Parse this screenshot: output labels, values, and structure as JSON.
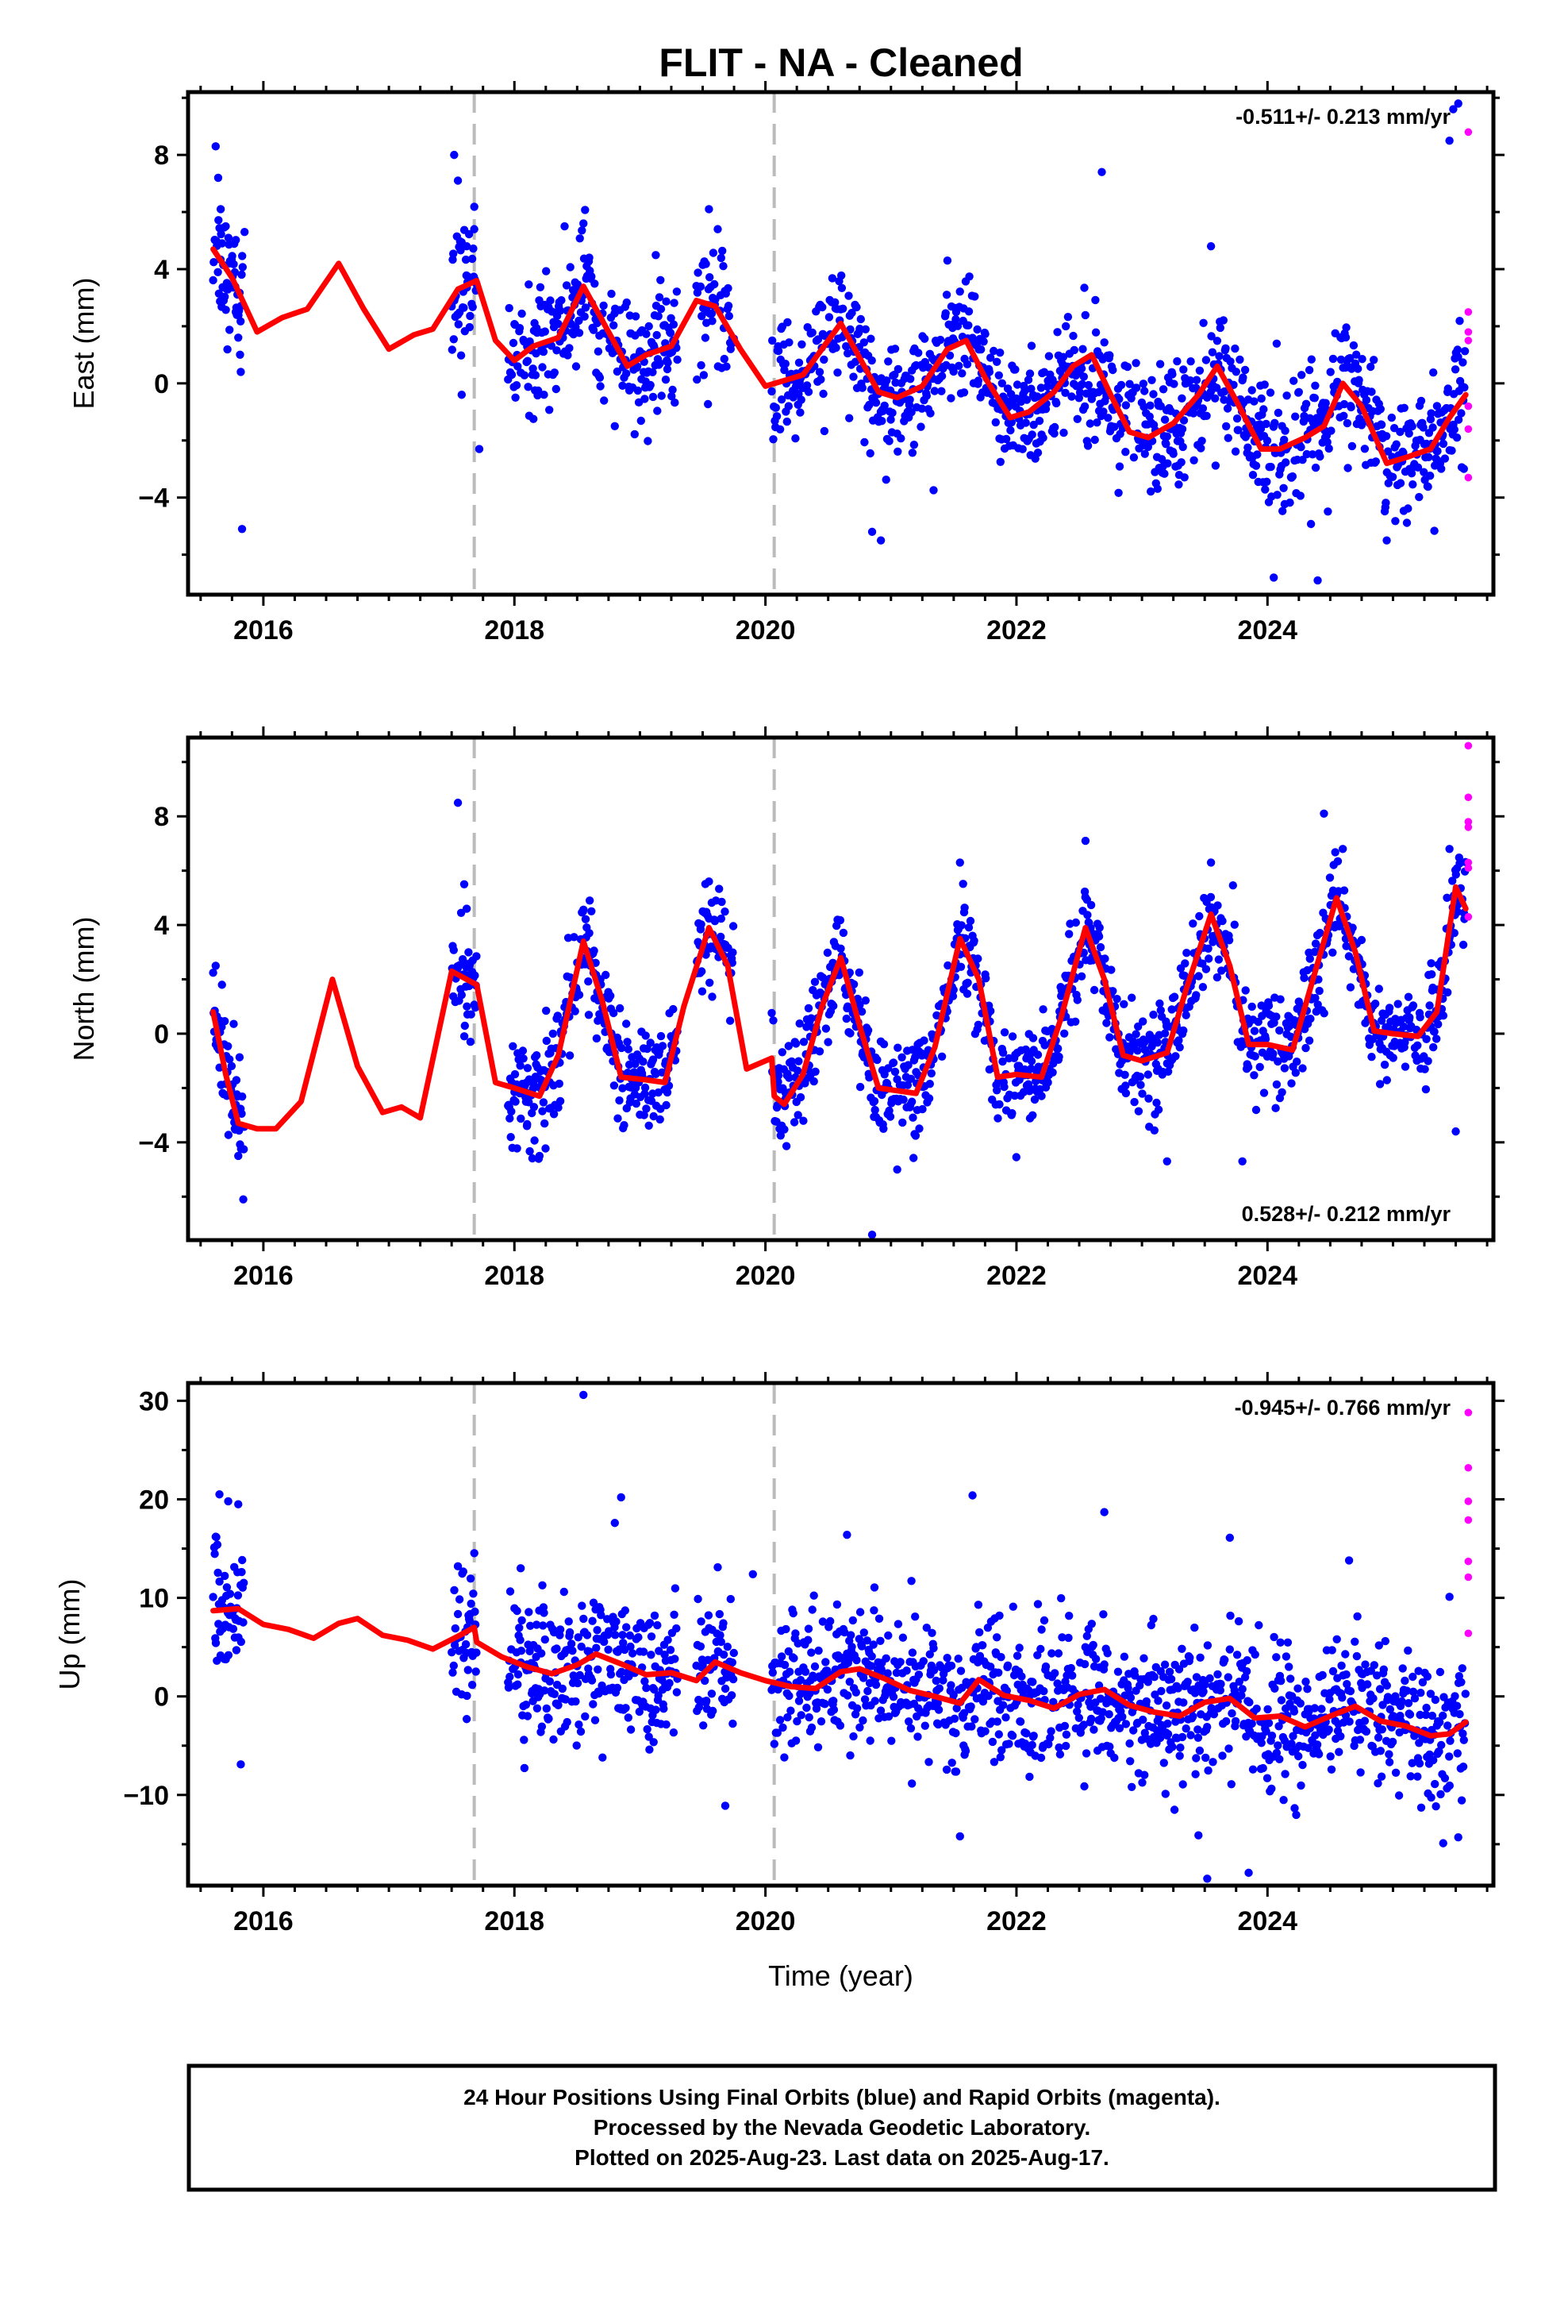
{
  "title": "FLIT  - NA - Cleaned",
  "footer": {
    "line1": "24 Hour Positions Using Final Orbits (blue) and Rapid Orbits (magenta).",
    "line2": "Processed by the Nevada Geodetic Laboratory.",
    "line3": "Plotted on 2025-Aug-23. Last data on 2025-Aug-17."
  },
  "colors": {
    "final_orbits": "#0000ff",
    "rapid_orbits": "#ff00ff",
    "model_fit": "#ff0000",
    "step_lines": "#bbbbbb"
  },
  "chart_data": [
    {
      "type": "scatter",
      "ylabel": "East (mm)",
      "xlabel": "",
      "xlim": [
        2015.4,
        2025.8
      ],
      "ylim": [
        -7.4,
        10.2
      ],
      "x_ticks": [
        2016,
        2018,
        2020,
        2022,
        2024
      ],
      "x_tick_labels": [
        "2016",
        "2018",
        "2020",
        "2022",
        "2024"
      ],
      "y_ticks": [
        -4,
        0,
        4,
        8
      ],
      "y_tick_labels": [
        "−4",
        "0",
        "4",
        "8"
      ],
      "rate_label": "-0.511+/- 0.213 mm/yr",
      "rate_position": "top-right",
      "grid": false,
      "step_epochs": [
        2017.68,
        2020.07
      ],
      "segments": [
        [
          2015.6,
          2015.85
        ],
        [
          2017.5,
          2017.7
        ],
        [
          2017.95,
          2019.3
        ],
        [
          2019.45,
          2019.75
        ],
        [
          2020.05,
          2025.58
        ]
      ],
      "model_fit": {
        "name": "",
        "x": [
          2015.6,
          2015.75,
          2015.95,
          2016.15,
          2016.35,
          2016.6,
          2016.8,
          2017.0,
          2017.2,
          2017.35,
          2017.55,
          2017.7,
          2017.85,
          2018.0,
          2018.15,
          2018.35,
          2018.55,
          2018.7,
          2018.9,
          2019.05,
          2019.25,
          2019.45,
          2019.6,
          2019.8,
          2020.0,
          2020.15,
          2020.3,
          2020.45,
          2020.6,
          2020.75,
          2020.9,
          2021.05,
          2021.25,
          2021.45,
          2021.6,
          2021.75,
          2021.95,
          2022.1,
          2022.3,
          2022.45,
          2022.6,
          2022.75,
          2022.9,
          2023.05,
          2023.25,
          2023.45,
          2023.6,
          2023.75,
          2023.95,
          2024.1,
          2024.3,
          2024.45,
          2024.6,
          2024.75,
          2024.95,
          2025.1,
          2025.3,
          2025.45,
          2025.58
        ],
        "y": [
          4.7,
          3.7,
          1.8,
          2.3,
          2.6,
          4.2,
          2.6,
          1.2,
          1.7,
          1.9,
          3.3,
          3.6,
          1.5,
          0.8,
          1.3,
          1.6,
          3.4,
          2.2,
          0.6,
          1.0,
          1.3,
          2.9,
          2.7,
          1.2,
          -0.1,
          0.1,
          0.3,
          1.2,
          2.1,
          0.9,
          -0.3,
          -0.5,
          -0.1,
          1.2,
          1.5,
          0.2,
          -1.2,
          -1.0,
          -0.3,
          0.6,
          1.0,
          -0.4,
          -1.7,
          -1.9,
          -1.4,
          -0.4,
          0.6,
          -0.6,
          -2.3,
          -2.3,
          -1.9,
          -1.5,
          0.0,
          -0.8,
          -2.8,
          -2.6,
          -2.3,
          -1.2,
          -0.4
        ]
      },
      "final_points": [
        {
          "x": 2015.62,
          "y": 8.3
        },
        {
          "x": 2015.64,
          "y": 7.2
        },
        {
          "x": 2015.66,
          "y": 6.1
        },
        {
          "x": 2015.7,
          "y": 5.5
        },
        {
          "x": 2015.73,
          "y": 4.2
        },
        {
          "x": 2015.75,
          "y": 3.4
        },
        {
          "x": 2015.78,
          "y": 2.5
        },
        {
          "x": 2015.8,
          "y": 1.6
        },
        {
          "x": 2015.82,
          "y": 0.4
        },
        {
          "x": 2015.83,
          "y": -5.1
        },
        {
          "x": 2015.85,
          "y": 5.3
        },
        {
          "x": 2017.52,
          "y": 8.0
        },
        {
          "x": 2017.55,
          "y": 7.1
        },
        {
          "x": 2017.58,
          "y": -0.4
        },
        {
          "x": 2017.62,
          "y": 4.8
        },
        {
          "x": 2017.68,
          "y": 5.4
        },
        {
          "x": 2017.72,
          "y": -2.3
        },
        {
          "x": 2018.4,
          "y": 5.5
        },
        {
          "x": 2018.55,
          "y": 5.6
        },
        {
          "x": 2018.8,
          "y": -1.5
        },
        {
          "x": 2019.55,
          "y": 6.1
        },
        {
          "x": 2019.62,
          "y": 5.4
        },
        {
          "x": 2020.85,
          "y": -5.2
        },
        {
          "x": 2020.92,
          "y": -5.5
        },
        {
          "x": 2021.45,
          "y": 4.3
        },
        {
          "x": 2022.68,
          "y": 7.4
        },
        {
          "x": 2023.55,
          "y": 4.8
        },
        {
          "x": 2024.05,
          "y": -6.8
        },
        {
          "x": 2024.4,
          "y": -6.9
        },
        {
          "x": 2024.95,
          "y": -5.5
        },
        {
          "x": 2025.45,
          "y": 8.5
        },
        {
          "x": 2025.48,
          "y": 9.6
        },
        {
          "x": 2025.52,
          "y": 9.8
        }
      ],
      "rapid_points": [
        {
          "x": 2025.6,
          "y": 8.8
        },
        {
          "x": 2025.6,
          "y": 2.5
        },
        {
          "x": 2025.6,
          "y": 1.8
        },
        {
          "x": 2025.6,
          "y": 1.5
        },
        {
          "x": 2025.6,
          "y": -0.8
        },
        {
          "x": 2025.6,
          "y": -1.6
        },
        {
          "x": 2025.6,
          "y": -3.3
        }
      ],
      "scatter_spread": 1.4
    },
    {
      "type": "scatter",
      "ylabel": "North (mm)",
      "xlabel": "",
      "xlim": [
        2015.4,
        2025.8
      ],
      "ylim": [
        -7.6,
        10.9
      ],
      "x_ticks": [
        2016,
        2018,
        2020,
        2022,
        2024
      ],
      "x_tick_labels": [
        "2016",
        "2018",
        "2020",
        "2022",
        "2024"
      ],
      "y_ticks": [
        -4,
        0,
        4,
        8
      ],
      "y_tick_labels": [
        "−4",
        "0",
        "4",
        "8"
      ],
      "rate_label": "0.528+/- 0.212 mm/yr",
      "rate_position": "bottom-right",
      "grid": false,
      "step_epochs": [
        2017.68,
        2020.07
      ],
      "segments": [
        [
          2015.6,
          2015.85
        ],
        [
          2017.5,
          2017.7
        ],
        [
          2017.95,
          2019.3
        ],
        [
          2019.45,
          2019.75
        ],
        [
          2020.05,
          2025.58
        ]
      ],
      "model_fit": {
        "name": "",
        "x": [
          2015.6,
          2015.7,
          2015.8,
          2015.95,
          2016.1,
          2016.3,
          2016.55,
          2016.75,
          2016.95,
          2017.1,
          2017.25,
          2017.5,
          2017.7,
          2017.85,
          2018.0,
          2018.2,
          2018.35,
          2018.55,
          2018.7,
          2018.85,
          2019.05,
          2019.2,
          2019.35,
          2019.55,
          2019.7,
          2019.85,
          2020.05,
          2020.07,
          2020.15,
          2020.3,
          2020.45,
          2020.6,
          2020.75,
          2020.9,
          2021.05,
          2021.2,
          2021.35,
          2021.55,
          2021.7,
          2021.85,
          2022.0,
          2022.2,
          2022.35,
          2022.55,
          2022.7,
          2022.85,
          2023.0,
          2023.2,
          2023.35,
          2023.55,
          2023.7,
          2023.85,
          2024.0,
          2024.2,
          2024.35,
          2024.55,
          2024.7,
          2024.85,
          2025.0,
          2025.2,
          2025.35,
          2025.5,
          2025.58
        ],
        "y": [
          0.8,
          -1.5,
          -3.3,
          -3.5,
          -3.5,
          -2.5,
          2.0,
          -1.2,
          -2.9,
          -2.7,
          -3.1,
          2.3,
          1.8,
          -1.8,
          -2.0,
          -2.3,
          -0.8,
          3.4,
          1.2,
          -1.6,
          -1.7,
          -1.8,
          1.0,
          3.9,
          2.5,
          -1.3,
          -0.9,
          -2.3,
          -2.6,
          -1.5,
          1.0,
          2.8,
          0.3,
          -2.0,
          -2.1,
          -2.2,
          -0.5,
          3.5,
          2.0,
          -1.6,
          -1.5,
          -1.6,
          0.5,
          3.9,
          2.0,
          -0.8,
          -1.0,
          -0.7,
          1.6,
          4.4,
          2.5,
          -0.4,
          -0.4,
          -0.6,
          1.8,
          5.0,
          3.0,
          0.1,
          0.0,
          -0.1,
          0.8,
          5.4,
          4.6
        ]
      },
      "final_points": [
        {
          "x": 2015.62,
          "y": 2.5
        },
        {
          "x": 2015.67,
          "y": 1.8
        },
        {
          "x": 2015.75,
          "y": -3.0
        },
        {
          "x": 2015.8,
          "y": -4.5
        },
        {
          "x": 2015.84,
          "y": -6.1
        },
        {
          "x": 2017.55,
          "y": 8.5
        },
        {
          "x": 2017.6,
          "y": 5.5
        },
        {
          "x": 2017.62,
          "y": 4.6
        },
        {
          "x": 2017.65,
          "y": -0.3
        },
        {
          "x": 2018.1,
          "y": -3.4
        },
        {
          "x": 2018.2,
          "y": -4.5
        },
        {
          "x": 2018.6,
          "y": 4.9
        },
        {
          "x": 2019.55,
          "y": 5.6
        },
        {
          "x": 2020.85,
          "y": -7.4
        },
        {
          "x": 2021.05,
          "y": -5.0
        },
        {
          "x": 2021.55,
          "y": 6.3
        },
        {
          "x": 2022.55,
          "y": 7.1
        },
        {
          "x": 2023.2,
          "y": -4.7
        },
        {
          "x": 2023.55,
          "y": 6.3
        },
        {
          "x": 2023.8,
          "y": -4.7
        },
        {
          "x": 2024.45,
          "y": 8.1
        },
        {
          "x": 2024.6,
          "y": 6.8
        },
        {
          "x": 2025.5,
          "y": -3.6
        },
        {
          "x": 2025.45,
          "y": 6.8
        }
      ],
      "rapid_points": [
        {
          "x": 2025.6,
          "y": 10.6
        },
        {
          "x": 2025.6,
          "y": 8.7
        },
        {
          "x": 2025.6,
          "y": 7.8
        },
        {
          "x": 2025.6,
          "y": 7.6
        },
        {
          "x": 2025.6,
          "y": 6.3
        },
        {
          "x": 2025.6,
          "y": 6.1
        },
        {
          "x": 2025.6,
          "y": 4.3
        }
      ],
      "scatter_spread": 1.2
    },
    {
      "type": "scatter",
      "ylabel": "Up (mm)",
      "xlabel": "Time (year)",
      "xlim": [
        2015.4,
        2025.8
      ],
      "ylim": [
        -19.2,
        31.8
      ],
      "x_ticks": [
        2016,
        2018,
        2020,
        2022,
        2024
      ],
      "x_tick_labels": [
        "2016",
        "2018",
        "2020",
        "2022",
        "2024"
      ],
      "y_ticks": [
        -10,
        0,
        10,
        20,
        30
      ],
      "y_tick_labels": [
        "−10",
        "0",
        "10",
        "20",
        "30"
      ],
      "rate_label": "-0.945+/- 0.766 mm/yr",
      "rate_position": "top-right",
      "grid": false,
      "step_epochs": [
        2017.68,
        2020.07
      ],
      "segments": [
        [
          2015.6,
          2015.85
        ],
        [
          2017.5,
          2017.7
        ],
        [
          2017.95,
          2019.3
        ],
        [
          2019.45,
          2019.75
        ],
        [
          2020.05,
          2025.58
        ]
      ],
      "model_fit": {
        "name": "",
        "x": [
          2015.6,
          2015.8,
          2016.0,
          2016.2,
          2016.4,
          2016.6,
          2016.75,
          2016.95,
          2017.15,
          2017.35,
          2017.55,
          2017.68,
          2017.7,
          2017.9,
          2018.1,
          2018.3,
          2018.5,
          2018.65,
          2018.85,
          2019.05,
          2019.25,
          2019.45,
          2019.6,
          2019.8,
          2020.0,
          2020.2,
          2020.4,
          2020.6,
          2020.75,
          2020.95,
          2021.15,
          2021.35,
          2021.55,
          2021.7,
          2021.9,
          2022.1,
          2022.3,
          2022.5,
          2022.7,
          2022.9,
          2023.1,
          2023.3,
          2023.5,
          2023.7,
          2023.9,
          2024.1,
          2024.3,
          2024.5,
          2024.7,
          2024.9,
          2025.1,
          2025.3,
          2025.45,
          2025.58
        ],
        "y": [
          8.7,
          8.9,
          7.3,
          6.8,
          5.9,
          7.4,
          7.9,
          6.2,
          5.7,
          4.8,
          6.1,
          7.0,
          5.5,
          4.0,
          3.0,
          2.3,
          3.2,
          4.3,
          3.3,
          2.2,
          2.4,
          1.6,
          3.5,
          2.4,
          1.6,
          1.0,
          0.8,
          2.5,
          2.8,
          1.8,
          0.6,
          0.0,
          -0.7,
          1.7,
          0.1,
          -0.4,
          -1.2,
          0.2,
          0.7,
          -0.9,
          -1.6,
          -2.0,
          -0.6,
          -0.2,
          -2.2,
          -2.0,
          -3.1,
          -2.0,
          -1.0,
          -2.5,
          -3.0,
          -4.0,
          -3.8,
          -2.6
        ]
      },
      "final_points": [
        {
          "x": 2015.65,
          "y": 20.5
        },
        {
          "x": 2015.72,
          "y": 19.8
        },
        {
          "x": 2015.8,
          "y": 19.5
        },
        {
          "x": 2015.82,
          "y": -6.9
        },
        {
          "x": 2015.62,
          "y": 16.2
        },
        {
          "x": 2017.55,
          "y": 13.2
        },
        {
          "x": 2017.62,
          "y": -2.3
        },
        {
          "x": 2018.05,
          "y": 13.0
        },
        {
          "x": 2018.55,
          "y": 30.6
        },
        {
          "x": 2018.85,
          "y": 20.2
        },
        {
          "x": 2018.8,
          "y": 17.6
        },
        {
          "x": 2019.62,
          "y": 13.1
        },
        {
          "x": 2019.68,
          "y": -11.1
        },
        {
          "x": 2019.9,
          "y": 12.4
        },
        {
          "x": 2020.65,
          "y": 16.4
        },
        {
          "x": 2021.55,
          "y": -14.2
        },
        {
          "x": 2021.65,
          "y": 20.4
        },
        {
          "x": 2022.7,
          "y": 18.7
        },
        {
          "x": 2023.45,
          "y": -14.1
        },
        {
          "x": 2023.52,
          "y": -18.5
        },
        {
          "x": 2023.85,
          "y": -17.9
        },
        {
          "x": 2023.7,
          "y": 16.1
        },
        {
          "x": 2024.65,
          "y": 13.8
        },
        {
          "x": 2025.4,
          "y": -14.9
        },
        {
          "x": 2025.52,
          "y": -14.3
        },
        {
          "x": 2025.45,
          "y": 10.1
        }
      ],
      "rapid_points": [
        {
          "x": 2025.6,
          "y": 28.8
        },
        {
          "x": 2025.6,
          "y": 23.2
        },
        {
          "x": 2025.6,
          "y": 19.8
        },
        {
          "x": 2025.6,
          "y": 17.9
        },
        {
          "x": 2025.6,
          "y": 13.7
        },
        {
          "x": 2025.6,
          "y": 12.1
        },
        {
          "x": 2025.6,
          "y": 6.4
        }
      ],
      "scatter_spread": 4.5
    }
  ]
}
